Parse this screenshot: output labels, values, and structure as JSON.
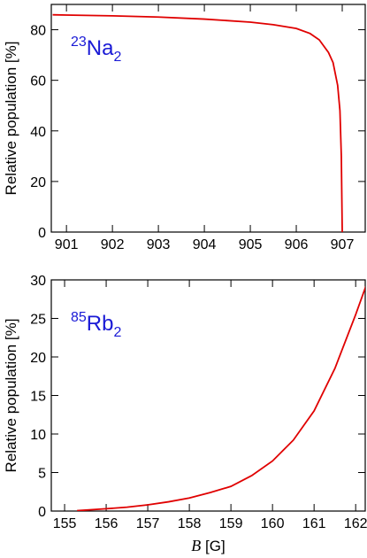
{
  "chart_data": [
    {
      "type": "line",
      "ylabel": "Relative population [%]",
      "annotation": {
        "sup": "23",
        "text": "Na",
        "sub": "2",
        "color": "#1a1ad6"
      },
      "xlim": [
        900.67,
        907.5
      ],
      "ylim": [
        0,
        90
      ],
      "xticks": [
        901,
        902,
        903,
        904,
        905,
        906,
        907
      ],
      "yticks": [
        0,
        20,
        40,
        60,
        80
      ],
      "x": [
        900.7,
        901,
        902,
        903,
        904,
        905,
        905.5,
        906,
        906.3,
        906.5,
        906.7,
        906.8,
        906.9,
        906.95,
        906.98,
        907.0
      ],
      "series": [
        {
          "color": "#e00000",
          "values": [
            85.9,
            85.8,
            85.5,
            85,
            84.2,
            83,
            82,
            80.5,
            78.5,
            76,
            71,
            67,
            58,
            48,
            30,
            0
          ]
        }
      ]
    },
    {
      "type": "line",
      "ylabel": "Relative population [%]",
      "xlabel": {
        "symbol": "B",
        "unit": "[G]"
      },
      "annotation": {
        "sup": "85",
        "text": "Rb",
        "sub": "2",
        "color": "#1a1ad6"
      },
      "xlim": [
        154.68,
        162.23
      ],
      "ylim": [
        0,
        30
      ],
      "xticks": [
        155,
        156,
        157,
        158,
        159,
        160,
        161,
        162
      ],
      "yticks": [
        0,
        5,
        10,
        15,
        20,
        25,
        30
      ],
      "x": [
        155.3,
        156,
        156.5,
        157,
        157.5,
        158,
        158.5,
        159,
        159.5,
        160,
        160.5,
        161,
        161.5,
        162,
        162.3
      ],
      "series": [
        {
          "color": "#e00000",
          "values": [
            0.05,
            0.3,
            0.5,
            0.8,
            1.2,
            1.7,
            2.4,
            3.2,
            4.6,
            6.5,
            9.2,
            13,
            18.5,
            25.5,
            30
          ]
        }
      ]
    }
  ]
}
